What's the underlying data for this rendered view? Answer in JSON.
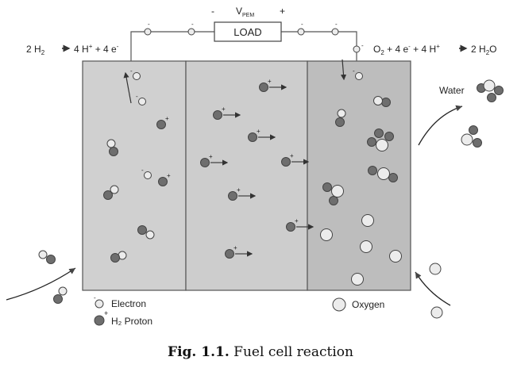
{
  "equations": {
    "anode_reactant": "2 H",
    "anode_reactant_sub": "2",
    "anode_product": "4 H",
    "anode_product_sup": "+",
    "anode_product_tail": " + 4 e",
    "anode_product_tail_sup": "-",
    "cathode_o": "O",
    "cathode_o_sub": "2",
    "cathode_mid": " + 4 e",
    "cathode_mid_sup": "-",
    "cathode_tail": " + 4 H",
    "cathode_tail_sup": "+",
    "cathode_product": "2 H",
    "cathode_product_sub": "2",
    "cathode_product_tail": "O"
  },
  "circuit": {
    "load_label": "LOAD",
    "voltage_label": "V",
    "voltage_sub": "PEM",
    "minus_sign": "-",
    "plus_sign": "+"
  },
  "labels": {
    "water": "Water",
    "electron": "Electron",
    "proton": "H₂ Proton",
    "oxygen": "Oxygen"
  },
  "caption": {
    "prefix": "Fig. 1.1.",
    "text": "Fuel cell reaction"
  },
  "colors": {
    "anode_fill": "#d0d0d0",
    "membrane_fill": "#cdcdcd",
    "cathode_fill": "#bdbdbd",
    "proton_dark": "#6e6e6e",
    "atom_light": "#ececec",
    "stroke": "#555555"
  }
}
